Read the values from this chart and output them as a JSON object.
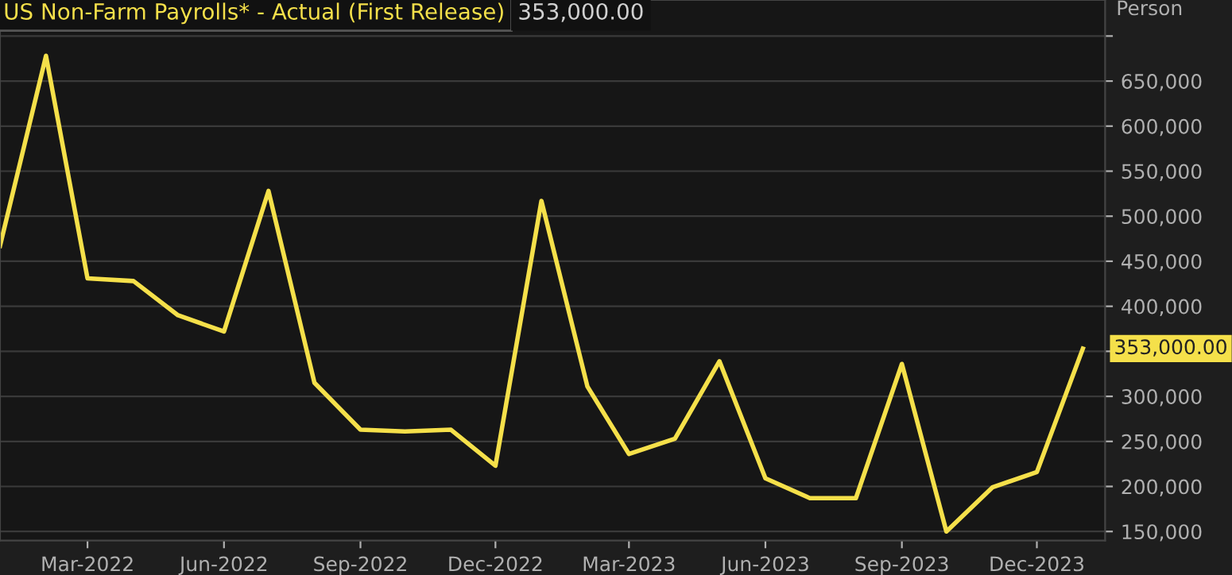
{
  "chart_data": {
    "type": "line",
    "title": "US Non-Farm Payrolls* - Actual (First Release)",
    "subtitle": "353,000.00",
    "ylabel": "Person",
    "x": [
      "2022-01",
      "2022-02",
      "2022-03",
      "2022-04",
      "2022-05",
      "2022-06",
      "2022-07",
      "2022-08",
      "2022-09",
      "2022-10",
      "2022-11",
      "2022-12",
      "2023-01",
      "2023-02",
      "2023-03",
      "2023-04",
      "2023-05",
      "2023-06",
      "2023-07",
      "2023-08",
      "2023-09",
      "2023-10",
      "2023-11",
      "2023-12",
      "2024-01"
    ],
    "series": [
      {
        "color": "#f5e04a",
        "values": [
          467000,
          678000,
          431000,
          428000,
          390000,
          372000,
          528000,
          315000,
          263000,
          261000,
          263000,
          223000,
          517000,
          311000,
          236000,
          253000,
          339000,
          209000,
          187000,
          187000,
          336000,
          150000,
          199000,
          216000,
          353000
        ],
        "value_labels": [
          null,
          null,
          null,
          null,
          null,
          null,
          null,
          null,
          null,
          null,
          null,
          null,
          null,
          null,
          null,
          null,
          null,
          null,
          null,
          null,
          null,
          null,
          null,
          null,
          "353,000.00"
        ]
      }
    ],
    "xlim": [
      "2022-01-01",
      "2024-01-16"
    ],
    "xticks": [
      {
        "value": "2022-03",
        "label": "Mar-2022"
      },
      {
        "value": "2022-06",
        "label": "Jun-2022"
      },
      {
        "value": "2022-09",
        "label": "Sep-2022"
      },
      {
        "value": "2022-12",
        "label": "Dec-2022"
      },
      {
        "value": "2023-03",
        "label": "Mar-2023"
      },
      {
        "value": "2023-06",
        "label": "Jun-2023"
      },
      {
        "value": "2023-09",
        "label": "Sep-2023"
      },
      {
        "value": "2023-12",
        "label": "Dec-2023"
      }
    ],
    "ylim": [
      140000,
      740000
    ],
    "yticks": [
      {
        "value": 150000,
        "label": "150,000"
      },
      {
        "value": 200000,
        "label": "200,000"
      },
      {
        "value": 250000,
        "label": "250,000"
      },
      {
        "value": 300000,
        "label": "300,000"
      },
      {
        "value": 350000,
        "label": null
      },
      {
        "value": 400000,
        "label": "400,000"
      },
      {
        "value": 450000,
        "label": "450,000"
      },
      {
        "value": 500000,
        "label": "500,000"
      },
      {
        "value": 550000,
        "label": "550,000"
      },
      {
        "value": 600000,
        "label": "600,000"
      },
      {
        "value": 650000,
        "label": "650,000"
      },
      {
        "value": 700000,
        "label": null
      }
    ],
    "grid": "y",
    "line_style": "solid",
    "marker": "none"
  }
}
